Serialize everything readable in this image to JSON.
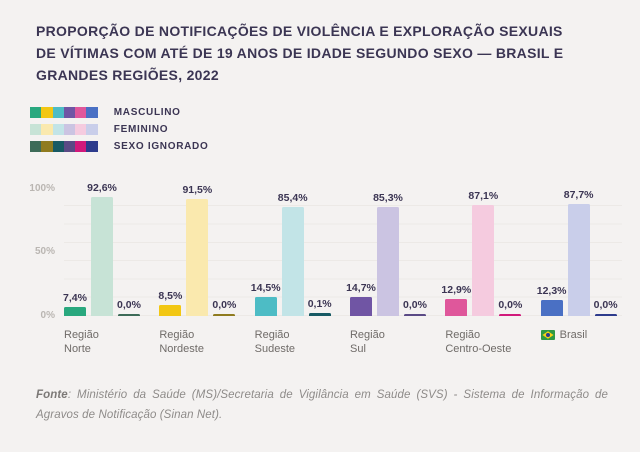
{
  "page": {
    "background": "#F4F2F1",
    "text_dark": "#3B3553",
    "axis_gray": "#BAB6B2",
    "label_gray": "#6F6B68",
    "footer_gray": "#8E8B89"
  },
  "title": {
    "lines": [
      "PROPORÇÃO DE NOTIFICAÇÕES DE VIOLÊNCIA E EXPLORAÇÃO SEXUAIS",
      "DE VÍTIMAS COM ATÉ DE 19 ANOS DE IDADE SEGUNDO SEXO — BRASIL E",
      "GRANDES REGIÕES, 2022"
    ]
  },
  "legend": {
    "items": [
      {
        "label": "MASCULINO"
      },
      {
        "label": "FEMININO"
      },
      {
        "label": "SEXO IGNORADO"
      }
    ]
  },
  "chart_data": {
    "type": "bar",
    "title": "Proporção de notificações de violência e exploração sexuais de vítimas com até de 19 anos de idade segundo sexo — Brasil e grandes regiões, 2022",
    "categories": [
      "Região Norte",
      "Região Nordeste",
      "Região Sudeste",
      "Região Sul",
      "Região Centro-Oeste",
      "Brasil"
    ],
    "category_labels": [
      {
        "line1": "Região",
        "line2": "Norte",
        "flag": false
      },
      {
        "line1": "Região",
        "line2": "Nordeste",
        "flag": false
      },
      {
        "line1": "Região",
        "line2": "Sudeste",
        "flag": false
      },
      {
        "line1": "Região",
        "line2": "Sul",
        "flag": false
      },
      {
        "line1": "Região",
        "line2": "Centro-Oeste",
        "flag": false
      },
      {
        "line1": "Brasil",
        "line2": "",
        "flag": true
      }
    ],
    "series": [
      {
        "name": "MASCULINO",
        "values": [
          7.4,
          8.5,
          14.5,
          14.7,
          12.9,
          12.3
        ],
        "labels": [
          "7,4%",
          "8,5%",
          "14,5%",
          "14,7%",
          "12,9%",
          "12,3%"
        ],
        "colors": [
          "#29A87E",
          "#F2C713",
          "#4DBCC5",
          "#7055A4",
          "#DF579B",
          "#4A70C4"
        ]
      },
      {
        "name": "FEMININO",
        "values": [
          92.6,
          91.5,
          85.4,
          85.3,
          87.1,
          87.7
        ],
        "labels": [
          "92,6%",
          "91,5%",
          "85,4%",
          "85,3%",
          "87,1%",
          "87,7%"
        ],
        "colors": [
          "#C7E3D6",
          "#FAE9AE",
          "#C2E4E7",
          "#CBC4E2",
          "#F5CBDF",
          "#C9CEEA"
        ]
      },
      {
        "name": "SEXO IGNORADO",
        "values": [
          0.0,
          0.0,
          0.1,
          0.0,
          0.0,
          0.0
        ],
        "labels": [
          "0,0%",
          "0,0%",
          "0,1%",
          "0,0%",
          "0,0%",
          "0,0%"
        ],
        "colors": [
          "#3D6B58",
          "#8F7B1F",
          "#175A64",
          "#5A4A85",
          "#D1197B",
          "#2D3B8C"
        ]
      }
    ],
    "xlabel": "",
    "ylabel": "",
    "yticks": [
      "100%",
      "50%",
      "0%"
    ],
    "ylim": [
      0,
      100
    ],
    "grid": true,
    "legend_position": "top-left",
    "flag_colors": {
      "green": "#2E9A44",
      "yellow": "#F7D117",
      "blue": "#2B3A8C"
    }
  },
  "footer": {
    "prefix": "Fonte",
    "text": ": Ministério da Saúde (MS)/Secretaria de Vigilância em Saúde (SVS) - Sistema de Informação de Agravos de Notificação (Sinan Net)."
  }
}
